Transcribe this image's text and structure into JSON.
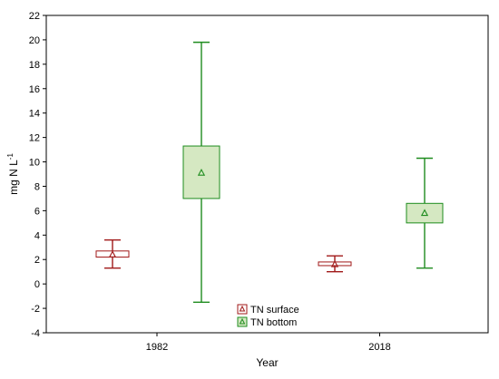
{
  "chart_data": {
    "type": "box",
    "xlabel": "Year",
    "ylabel": "mg N L",
    "ylabel_superscript": "-1",
    "ylim": [
      -4,
      22
    ],
    "yticks": [
      -4,
      -2,
      0,
      2,
      4,
      6,
      8,
      10,
      12,
      14,
      16,
      18,
      20,
      22
    ],
    "categories": [
      "1982",
      "2018"
    ],
    "series": [
      {
        "name": "TN surface",
        "color": "#a01818",
        "fill": "#ffffff",
        "boxes": [
          {
            "category": "1982",
            "mean": 2.4,
            "box_low": 2.2,
            "box_high": 2.7,
            "whisker_low": 1.3,
            "whisker_high": 3.6
          },
          {
            "category": "2018",
            "mean": 1.6,
            "box_low": 1.5,
            "box_high": 1.8,
            "whisker_low": 1.0,
            "whisker_high": 2.3
          }
        ]
      },
      {
        "name": "TN bottom",
        "color": "#1e8c1e",
        "fill": "#d5e8c2",
        "boxes": [
          {
            "category": "1982",
            "mean": 9.1,
            "box_low": 7.0,
            "box_high": 11.3,
            "whisker_low": -1.5,
            "whisker_high": 19.8
          },
          {
            "category": "2018",
            "mean": 5.8,
            "box_low": 5.0,
            "box_high": 6.6,
            "whisker_low": 1.3,
            "whisker_high": 10.3
          }
        ]
      }
    ],
    "legend_position": "bottom-center",
    "grid": false
  }
}
